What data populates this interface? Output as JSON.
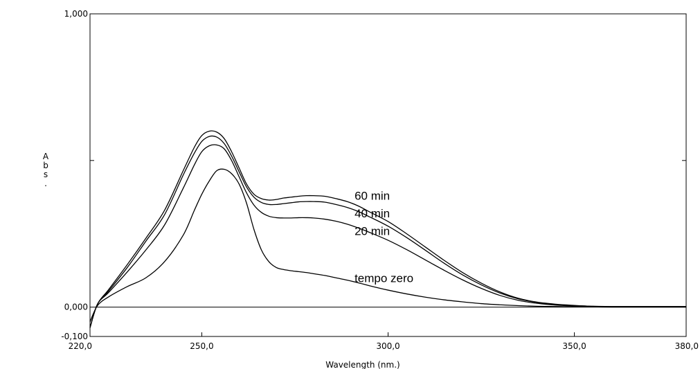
{
  "chart_data": {
    "type": "line",
    "title": "",
    "xlabel": "Wavelength (nm.)",
    "ylabel": "Abs.",
    "xlim": [
      220,
      380
    ],
    "ylim": [
      -0.1,
      1.0
    ],
    "x_ticks": [
      "220,0",
      "250,0",
      "300,0",
      "350,0",
      "380,0"
    ],
    "y_ticks": [
      "1,000",
      "0,000",
      "-0,100"
    ],
    "zero_line": 0,
    "series": [
      {
        "name": "60 min",
        "x": [
          220,
          222,
          225,
          230,
          235,
          240,
          245,
          248,
          250,
          252,
          254,
          256,
          258,
          260,
          262,
          264,
          266,
          268,
          270,
          272,
          274,
          276,
          278,
          280,
          283,
          286,
          289,
          292,
          295,
          300,
          305,
          310,
          315,
          320,
          325,
          330,
          335,
          340,
          345,
          350,
          355,
          360,
          365,
          370,
          375,
          380
        ],
        "y": [
          -0.07,
          0.01,
          0.06,
          0.145,
          0.235,
          0.33,
          0.465,
          0.545,
          0.585,
          0.6,
          0.597,
          0.575,
          0.53,
          0.475,
          0.42,
          0.385,
          0.37,
          0.365,
          0.367,
          0.372,
          0.375,
          0.378,
          0.38,
          0.38,
          0.378,
          0.37,
          0.36,
          0.345,
          0.325,
          0.292,
          0.25,
          0.205,
          0.16,
          0.118,
          0.082,
          0.052,
          0.03,
          0.017,
          0.01,
          0.006,
          0.003,
          0.002,
          0.002,
          0.002,
          0.002,
          0.002
        ]
      },
      {
        "name": "40 min",
        "x": [
          220,
          222,
          225,
          230,
          235,
          240,
          245,
          248,
          250,
          252,
          254,
          256,
          258,
          260,
          262,
          264,
          266,
          268,
          270,
          272,
          274,
          276,
          278,
          280,
          283,
          286,
          289,
          292,
          295,
          300,
          305,
          310,
          315,
          320,
          325,
          330,
          335,
          340,
          345,
          350,
          355,
          360,
          365,
          370,
          375,
          380
        ],
        "y": [
          -0.07,
          0.01,
          0.055,
          0.135,
          0.225,
          0.315,
          0.45,
          0.525,
          0.565,
          0.582,
          0.58,
          0.558,
          0.515,
          0.462,
          0.41,
          0.375,
          0.357,
          0.35,
          0.35,
          0.353,
          0.356,
          0.359,
          0.36,
          0.36,
          0.358,
          0.35,
          0.34,
          0.326,
          0.308,
          0.276,
          0.237,
          0.194,
          0.15,
          0.11,
          0.076,
          0.048,
          0.028,
          0.016,
          0.009,
          0.005,
          0.003,
          0.002,
          0.002,
          0.002,
          0.002,
          0.002
        ]
      },
      {
        "name": "20 min",
        "x": [
          220,
          222,
          225,
          230,
          235,
          240,
          245,
          248,
          250,
          252,
          254,
          256,
          258,
          260,
          262,
          264,
          266,
          268,
          270,
          272,
          274,
          276,
          278,
          280,
          283,
          286,
          289,
          292,
          295,
          300,
          305,
          310,
          315,
          320,
          325,
          330,
          335,
          340,
          345,
          350,
          355,
          360,
          365,
          370,
          375,
          380
        ],
        "y": [
          -0.07,
          0.01,
          0.05,
          0.12,
          0.195,
          0.28,
          0.405,
          0.485,
          0.53,
          0.55,
          0.553,
          0.54,
          0.5,
          0.445,
          0.39,
          0.348,
          0.323,
          0.31,
          0.305,
          0.304,
          0.304,
          0.305,
          0.305,
          0.304,
          0.3,
          0.293,
          0.283,
          0.27,
          0.255,
          0.228,
          0.196,
          0.161,
          0.126,
          0.093,
          0.064,
          0.04,
          0.023,
          0.013,
          0.007,
          0.004,
          0.002,
          0.001,
          0.001,
          0.001,
          0.001,
          0.001
        ]
      },
      {
        "name": "tempo zero",
        "x": [
          220,
          222,
          225,
          230,
          235,
          240,
          245,
          248,
          250,
          252,
          254,
          256,
          258,
          260,
          262,
          264,
          266,
          268,
          270,
          272,
          274,
          276,
          278,
          280,
          283,
          286,
          289,
          292,
          295,
          300,
          305,
          310,
          315,
          320,
          325,
          330,
          335,
          340,
          345,
          350,
          355,
          360,
          365,
          370,
          375,
          380
        ],
        "y": [
          -0.05,
          0.005,
          0.035,
          0.07,
          0.1,
          0.155,
          0.245,
          0.33,
          0.385,
          0.43,
          0.465,
          0.47,
          0.455,
          0.42,
          0.355,
          0.265,
          0.195,
          0.155,
          0.135,
          0.128,
          0.124,
          0.121,
          0.118,
          0.114,
          0.108,
          0.1,
          0.092,
          0.083,
          0.073,
          0.058,
          0.045,
          0.034,
          0.025,
          0.018,
          0.012,
          0.008,
          0.005,
          0.003,
          0.002,
          0.001,
          0.001,
          0.0,
          0.0,
          0.0,
          0.0,
          0.0
        ]
      }
    ],
    "annotations": [
      {
        "text": "60 min",
        "x": 291,
        "y": 0.38
      },
      {
        "text": "40 min",
        "x": 291,
        "y": 0.32
      },
      {
        "text": "20 min",
        "x": 291,
        "y": 0.26
      },
      {
        "text": "tempo zero",
        "x": 291,
        "y": 0.1
      }
    ],
    "legend": "none",
    "grid": false
  }
}
